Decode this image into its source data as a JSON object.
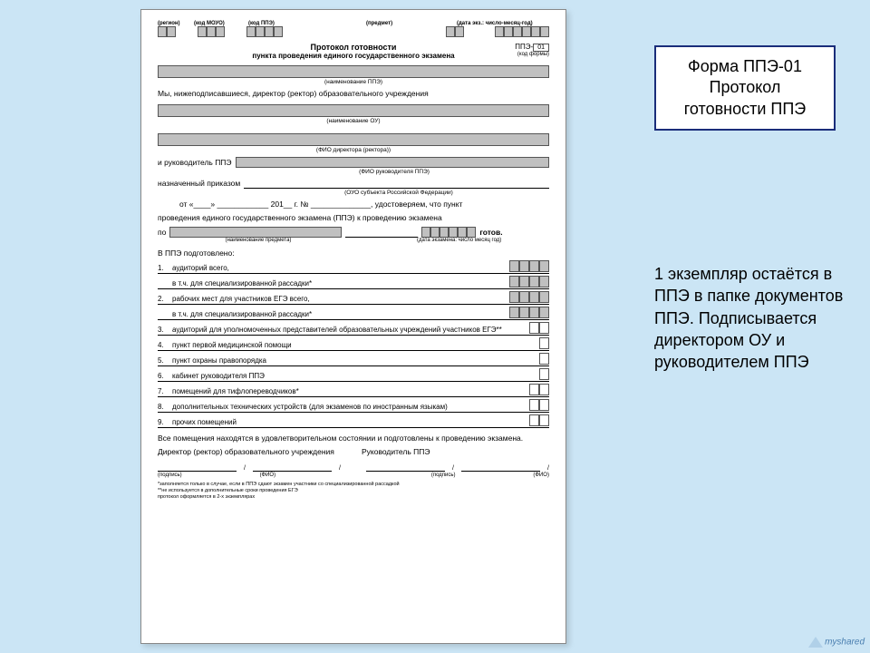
{
  "topLabels": {
    "region": "(регион)",
    "mouo": "(код МОУО)",
    "ppe": "(код ППЭ)",
    "subject": "(предмет)",
    "date": "(дата экз.: число-месяц-год)"
  },
  "title": {
    "line1": "Протокол готовности",
    "line2": "пункта проведения единого государственного экзамена",
    "formPrefix": "ППЭ-",
    "formCode": "01",
    "formCodeLabel": "(код формы)"
  },
  "captions": {
    "ppeName": "(наименование ППЭ)",
    "ouName": "(наименование ОУ)",
    "dirFio": "(ФИО директора (ректора))",
    "rukFio": "(ФИО руководителя ППЭ)",
    "ouo": "(ОУО субъекта Российской Федерации)",
    "subject": "(наименование предмета)",
    "examDate": "(дата экзамена: число месяц год)"
  },
  "body": {
    "intro": "Мы, нижеподписавшиеся, директор (ректор) образовательного учреждения",
    "ruk": "и руководитель ППЭ",
    "appointed": "назначенный приказом",
    "from": "от «____» ____________ 201__ г. № ______________, удостоверяем, что пункт",
    "exam": "проведения единого государственного экзамена (ППЭ) к проведению экзамена",
    "po": "по",
    "ready": "готов.",
    "prepared": "В ППЭ подготовлено:"
  },
  "items": [
    {
      "n": "1.",
      "t": "аудиторий всего,",
      "boxes": 4,
      "gray": true
    },
    {
      "n": "",
      "t": "в т.ч. для специализированной рассадки*",
      "boxes": 4,
      "gray": true
    },
    {
      "n": "2.",
      "t": "рабочих мест для участников ЕГЭ всего,",
      "boxes": 4,
      "gray": true
    },
    {
      "n": "",
      "t": "в т.ч. для специализированной рассадки*",
      "boxes": 4,
      "gray": true
    },
    {
      "n": "3.",
      "t": "аудиторий для уполномоченных представителей образовательных учреждений участников ЕГЭ**",
      "boxes": 2,
      "gray": false
    },
    {
      "n": "4.",
      "t": "пункт первой медицинской помощи",
      "boxes": 1,
      "gray": false
    },
    {
      "n": "5.",
      "t": "пункт охраны правопорядка",
      "boxes": 1,
      "gray": false
    },
    {
      "n": "6.",
      "t": "кабинет руководителя ППЭ",
      "boxes": 1,
      "gray": false
    },
    {
      "n": "7.",
      "t": "помещений для тифлопереводчиков*",
      "boxes": 2,
      "gray": false
    },
    {
      "n": "8.",
      "t": "дополнительных технических устройств (для экзаменов по иностранным языкам)",
      "boxes": 2,
      "gray": false
    },
    {
      "n": "9.",
      "t": "прочих помещений",
      "boxes": 2,
      "gray": false
    }
  ],
  "closing": "Все помещения находятся в удовлетворительном состоянии и подготовлены к проведению экзамена.",
  "sig": {
    "left": "Директор (ректор) образовательного учреждения",
    "right": "Руководитель ППЭ",
    "podpis": "(подпись)",
    "fio": "(ФИО)"
  },
  "footnotes": [
    "*заполняется только в случае, если в ППЭ сдают экзамен участники со специализированной рассадкой",
    "**не используется в дополнительные сроки проведения ЕГЭ",
    "протокол оформляется в 2-х экземплярах"
  ],
  "annotBox": {
    "l1": "Форма ППЭ-01",
    "l2": "Протокол",
    "l3": "готовности ППЭ"
  },
  "annotText": "1 экземпляр остаётся в ППЭ в папке документов ППЭ. Подписывается директором ОУ и руководителем ППЭ",
  "logo": "myshared"
}
